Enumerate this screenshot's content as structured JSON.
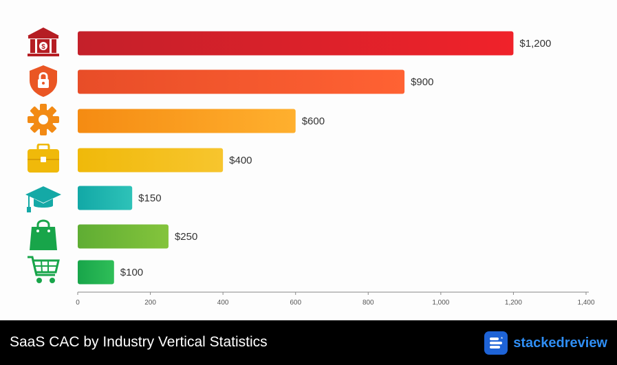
{
  "chart_data": {
    "type": "bar",
    "orientation": "horizontal",
    "categories": [
      "Financial Services",
      "Cybersecurity",
      "Software / Technology",
      "Business Services",
      "Education",
      "Retail",
      "eCommerce"
    ],
    "icons": [
      "bank-icon",
      "shield-lock-icon",
      "gear-icon",
      "briefcase-icon",
      "graduation-cap-icon",
      "shopping-bag-icon",
      "shopping-cart-icon"
    ],
    "values": [
      1200,
      900,
      600,
      400,
      150,
      250,
      100
    ],
    "value_labels": [
      "$1,200",
      "$900",
      "$600",
      "$400",
      "$150",
      "$250",
      "$100"
    ],
    "colors": [
      [
        "#c4202a",
        "#f0222a"
      ],
      [
        "#e84d28",
        "#ff6233"
      ],
      [
        "#f58b12",
        "#ffb02e"
      ],
      [
        "#f0b90a",
        "#f7c52e"
      ],
      [
        "#12a8a6",
        "#2ec2b8"
      ],
      [
        "#5fad33",
        "#84c43c"
      ],
      [
        "#18a54a",
        "#2fbe58"
      ]
    ],
    "xlim": [
      0,
      1400
    ],
    "xticks": [
      0,
      200,
      400,
      600,
      800,
      1000,
      1200,
      1400
    ],
    "xtick_labels": [
      "0",
      "200",
      "400",
      "600",
      "800",
      "1,000",
      "1,200",
      "1,400"
    ],
    "title": "SaaS CAC by Industry Vertical Statistics",
    "grid": false
  },
  "footer": {
    "title": "SaaS CAC by Industry Vertical Statistics",
    "brand": "stackedreview"
  }
}
